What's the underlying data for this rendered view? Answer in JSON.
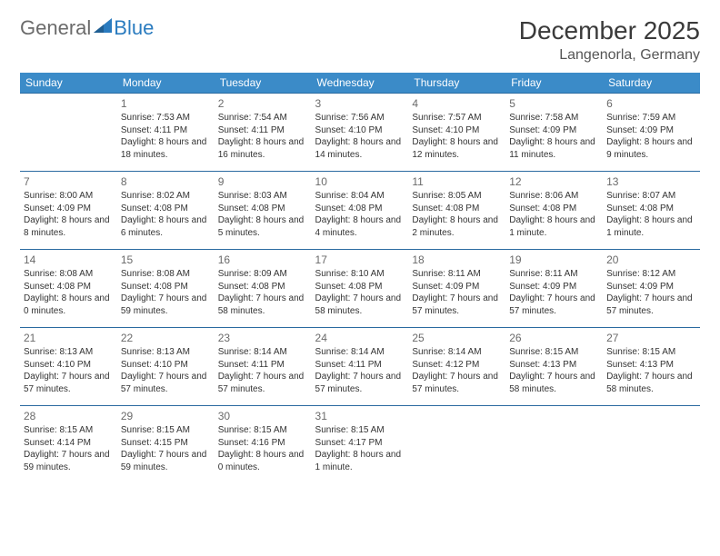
{
  "logo": {
    "text1": "General",
    "text2": "Blue",
    "color1": "#6b6b6b",
    "color2": "#2a7bbf"
  },
  "title": "December 2025",
  "location": "Langenorla, Germany",
  "header_bg": "#3b8bc8",
  "header_text_color": "#ffffff",
  "row_border_color": "#2a6aa0",
  "day_headers": [
    "Sunday",
    "Monday",
    "Tuesday",
    "Wednesday",
    "Thursday",
    "Friday",
    "Saturday"
  ],
  "weeks": [
    [
      null,
      {
        "n": "1",
        "sunrise": "7:53 AM",
        "sunset": "4:11 PM",
        "dl": "8 hours and 18 minutes."
      },
      {
        "n": "2",
        "sunrise": "7:54 AM",
        "sunset": "4:11 PM",
        "dl": "8 hours and 16 minutes."
      },
      {
        "n": "3",
        "sunrise": "7:56 AM",
        "sunset": "4:10 PM",
        "dl": "8 hours and 14 minutes."
      },
      {
        "n": "4",
        "sunrise": "7:57 AM",
        "sunset": "4:10 PM",
        "dl": "8 hours and 12 minutes."
      },
      {
        "n": "5",
        "sunrise": "7:58 AM",
        "sunset": "4:09 PM",
        "dl": "8 hours and 11 minutes."
      },
      {
        "n": "6",
        "sunrise": "7:59 AM",
        "sunset": "4:09 PM",
        "dl": "8 hours and 9 minutes."
      }
    ],
    [
      {
        "n": "7",
        "sunrise": "8:00 AM",
        "sunset": "4:09 PM",
        "dl": "8 hours and 8 minutes."
      },
      {
        "n": "8",
        "sunrise": "8:02 AM",
        "sunset": "4:08 PM",
        "dl": "8 hours and 6 minutes."
      },
      {
        "n": "9",
        "sunrise": "8:03 AM",
        "sunset": "4:08 PM",
        "dl": "8 hours and 5 minutes."
      },
      {
        "n": "10",
        "sunrise": "8:04 AM",
        "sunset": "4:08 PM",
        "dl": "8 hours and 4 minutes."
      },
      {
        "n": "11",
        "sunrise": "8:05 AM",
        "sunset": "4:08 PM",
        "dl": "8 hours and 2 minutes."
      },
      {
        "n": "12",
        "sunrise": "8:06 AM",
        "sunset": "4:08 PM",
        "dl": "8 hours and 1 minute."
      },
      {
        "n": "13",
        "sunrise": "8:07 AM",
        "sunset": "4:08 PM",
        "dl": "8 hours and 1 minute."
      }
    ],
    [
      {
        "n": "14",
        "sunrise": "8:08 AM",
        "sunset": "4:08 PM",
        "dl": "8 hours and 0 minutes."
      },
      {
        "n": "15",
        "sunrise": "8:08 AM",
        "sunset": "4:08 PM",
        "dl": "7 hours and 59 minutes."
      },
      {
        "n": "16",
        "sunrise": "8:09 AM",
        "sunset": "4:08 PM",
        "dl": "7 hours and 58 minutes."
      },
      {
        "n": "17",
        "sunrise": "8:10 AM",
        "sunset": "4:08 PM",
        "dl": "7 hours and 58 minutes."
      },
      {
        "n": "18",
        "sunrise": "8:11 AM",
        "sunset": "4:09 PM",
        "dl": "7 hours and 57 minutes."
      },
      {
        "n": "19",
        "sunrise": "8:11 AM",
        "sunset": "4:09 PM",
        "dl": "7 hours and 57 minutes."
      },
      {
        "n": "20",
        "sunrise": "8:12 AM",
        "sunset": "4:09 PM",
        "dl": "7 hours and 57 minutes."
      }
    ],
    [
      {
        "n": "21",
        "sunrise": "8:13 AM",
        "sunset": "4:10 PM",
        "dl": "7 hours and 57 minutes."
      },
      {
        "n": "22",
        "sunrise": "8:13 AM",
        "sunset": "4:10 PM",
        "dl": "7 hours and 57 minutes."
      },
      {
        "n": "23",
        "sunrise": "8:14 AM",
        "sunset": "4:11 PM",
        "dl": "7 hours and 57 minutes."
      },
      {
        "n": "24",
        "sunrise": "8:14 AM",
        "sunset": "4:11 PM",
        "dl": "7 hours and 57 minutes."
      },
      {
        "n": "25",
        "sunrise": "8:14 AM",
        "sunset": "4:12 PM",
        "dl": "7 hours and 57 minutes."
      },
      {
        "n": "26",
        "sunrise": "8:15 AM",
        "sunset": "4:13 PM",
        "dl": "7 hours and 58 minutes."
      },
      {
        "n": "27",
        "sunrise": "8:15 AM",
        "sunset": "4:13 PM",
        "dl": "7 hours and 58 minutes."
      }
    ],
    [
      {
        "n": "28",
        "sunrise": "8:15 AM",
        "sunset": "4:14 PM",
        "dl": "7 hours and 59 minutes."
      },
      {
        "n": "29",
        "sunrise": "8:15 AM",
        "sunset": "4:15 PM",
        "dl": "7 hours and 59 minutes."
      },
      {
        "n": "30",
        "sunrise": "8:15 AM",
        "sunset": "4:16 PM",
        "dl": "8 hours and 0 minutes."
      },
      {
        "n": "31",
        "sunrise": "8:15 AM",
        "sunset": "4:17 PM",
        "dl": "8 hours and 1 minute."
      },
      null,
      null,
      null
    ]
  ]
}
